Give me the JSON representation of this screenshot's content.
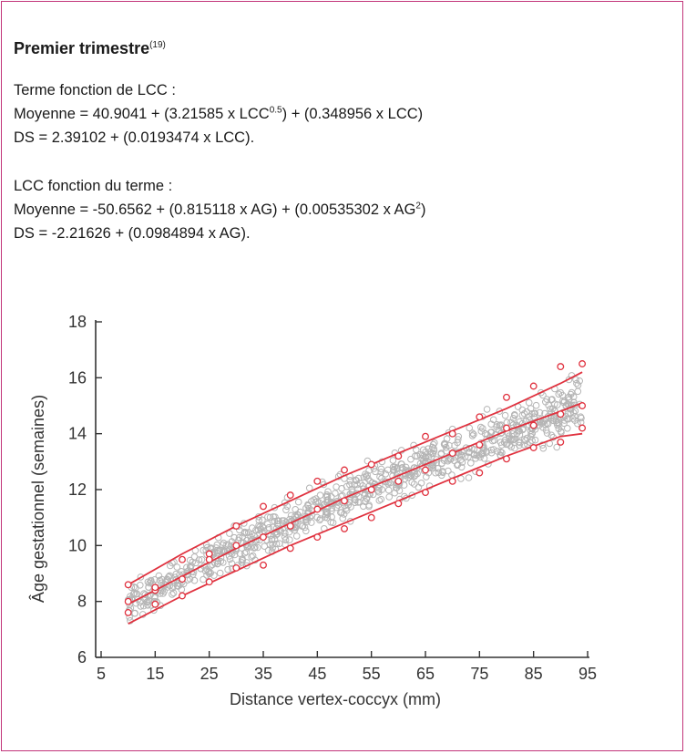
{
  "colors": {
    "border": "#c2357a",
    "scatter": "#b5b5b5",
    "curve": "#e0323f",
    "axis": "#333333"
  },
  "heading": {
    "title": "Premier trimestre",
    "ref": "(19)"
  },
  "section1": {
    "label": "Terme fonction de LCC :",
    "mean_pre": "Moyenne = 40.9041 + (3.21585 x LCC",
    "mean_sup": "0.5",
    "mean_post": ") + (0.348956 x LCC)",
    "sd": "DS = 2.39102 + (0.0193474 x LCC)."
  },
  "section2": {
    "label": "LCC fonction du terme :",
    "mean_pre": "Moyenne = -50.6562 + (0.815118 x AG) + (0.00535302 x AG",
    "mean_sup": "2",
    "mean_post": ")",
    "sd": "DS = -2.21626 + (0.0984894 x AG)."
  },
  "chart_data": {
    "type": "scatter",
    "xlabel": "Distance vertex-coccyx (mm)",
    "ylabel": "Âge gestationnel (semaines)",
    "xlim": [
      5,
      95
    ],
    "ylim": [
      6,
      18
    ],
    "xticks": [
      5,
      15,
      25,
      35,
      45,
      55,
      65,
      75,
      85,
      95
    ],
    "yticks": [
      6,
      8,
      10,
      12,
      14,
      16,
      18
    ],
    "series": [
      {
        "kind": "curve",
        "x": [
          10,
          20,
          30,
          40,
          50,
          60,
          70,
          80,
          90,
          94
        ],
        "y": [
          8.6,
          9.7,
          10.7,
          11.6,
          12.5,
          13.3,
          14.1,
          14.9,
          15.8,
          16.2
        ]
      },
      {
        "kind": "curve",
        "x": [
          10,
          20,
          30,
          40,
          50,
          60,
          70,
          80,
          90,
          94
        ],
        "y": [
          7.9,
          8.9,
          9.9,
          10.8,
          11.7,
          12.5,
          13.3,
          14.1,
          14.8,
          15.1
        ]
      },
      {
        "kind": "curve",
        "x": [
          10,
          20,
          30,
          40,
          50,
          60,
          70,
          80,
          90,
          94
        ],
        "y": [
          7.2,
          8.2,
          9.1,
          10.0,
          10.8,
          11.6,
          12.4,
          13.2,
          13.9,
          14.0
        ]
      },
      {
        "kind": "markers",
        "x": [
          10,
          15,
          20,
          25,
          30,
          35,
          40,
          45,
          50,
          55,
          60,
          65,
          70,
          75,
          80,
          85,
          90,
          94
        ],
        "y": [
          8.6,
          8.4,
          9.5,
          9.7,
          10.7,
          11.4,
          11.8,
          12.3,
          12.7,
          12.9,
          13.2,
          13.9,
          14.0,
          14.6,
          15.3,
          15.7,
          16.4,
          16.5
        ]
      },
      {
        "kind": "markers",
        "x": [
          10,
          15,
          20,
          25,
          30,
          35,
          40,
          45,
          50,
          55,
          60,
          65,
          70,
          75,
          80,
          85,
          90,
          94
        ],
        "y": [
          8.0,
          8.5,
          8.8,
          9.5,
          10.0,
          10.3,
          10.7,
          11.3,
          11.6,
          12.0,
          12.3,
          12.7,
          13.3,
          13.6,
          14.2,
          14.3,
          14.7,
          15.0
        ]
      },
      {
        "kind": "markers",
        "x": [
          10,
          15,
          20,
          25,
          30,
          35,
          40,
          45,
          50,
          55,
          60,
          65,
          70,
          75,
          80,
          85,
          90,
          94
        ],
        "y": [
          7.6,
          7.9,
          8.2,
          8.7,
          9.2,
          9.3,
          9.9,
          10.3,
          10.6,
          11.0,
          11.5,
          11.9,
          12.3,
          12.6,
          13.1,
          13.5,
          13.7,
          14.2
        ]
      }
    ]
  }
}
